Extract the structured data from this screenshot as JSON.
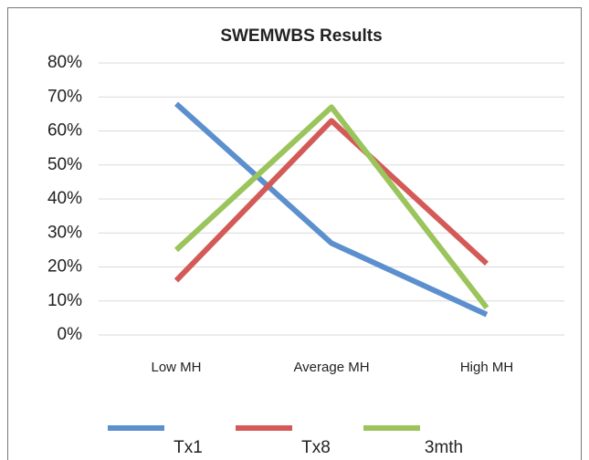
{
  "chart_data": {
    "type": "line",
    "title": "SWEMWBS Results",
    "categories": [
      "Low MH",
      "Average MH",
      "High MH"
    ],
    "series": [
      {
        "name": "Tx1",
        "color": "#5b8fce",
        "values": [
          68,
          27,
          6
        ]
      },
      {
        "name": "Tx8",
        "color": "#d45a57",
        "values": [
          16,
          63,
          21
        ]
      },
      {
        "name": "3mth",
        "color": "#9bc45c",
        "values": [
          25,
          67,
          8
        ]
      }
    ],
    "ylim": [
      0,
      80
    ],
    "yticks": [
      {
        "value": 0,
        "label": "0%"
      },
      {
        "value": 10,
        "label": "10%"
      },
      {
        "value": 20,
        "label": "20%"
      },
      {
        "value": 30,
        "label": "30%"
      },
      {
        "value": 40,
        "label": "40%"
      },
      {
        "value": 50,
        "label": "50%"
      },
      {
        "value": 60,
        "label": "60%"
      },
      {
        "value": 70,
        "label": "70%"
      },
      {
        "value": 80,
        "label": "80%"
      }
    ],
    "grid": true,
    "legend": "bottom"
  }
}
